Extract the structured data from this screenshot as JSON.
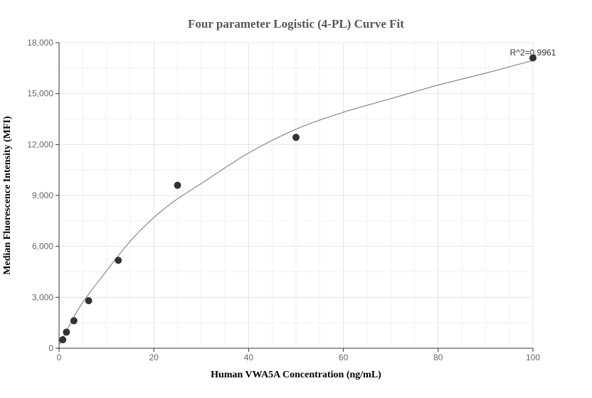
{
  "chart_data": {
    "type": "scatter",
    "title": "Four parameter Logistic (4-PL) Curve Fit",
    "xlabel": "Human VWA5A Concentration (ng/mL)",
    "ylabel": "Median Fluorescence Intensity (MFI)",
    "xlim": [
      0,
      100
    ],
    "ylim": [
      0,
      18000
    ],
    "x_ticks": [
      0,
      20,
      40,
      60,
      80,
      100
    ],
    "x_tick_labels": [
      "0",
      "20",
      "40",
      "60",
      "80",
      "100"
    ],
    "y_ticks": [
      0,
      3000,
      6000,
      9000,
      12000,
      15000,
      18000
    ],
    "y_tick_labels": [
      "0",
      "3,000",
      "6,000",
      "9,000",
      "12,000",
      "15,000",
      "18,000"
    ],
    "grid": true,
    "annotation": "R^2=0.9961",
    "series": [
      {
        "kind": "points",
        "x": [
          0.78,
          1.56,
          3.13,
          6.25,
          12.5,
          25,
          50,
          100
        ],
        "y": [
          500,
          950,
          1620,
          2800,
          5180,
          9600,
          12420,
          17100
        ],
        "color": "#333333"
      },
      {
        "kind": "fit-curve",
        "x": [
          0,
          2,
          5,
          10,
          15,
          20,
          25,
          30,
          40,
          50,
          60,
          70,
          80,
          90,
          100
        ],
        "y": [
          180,
          1250,
          2700,
          4550,
          6300,
          7700,
          8800,
          9700,
          11500,
          12900,
          13900,
          14700,
          15500,
          16200,
          16950
        ],
        "color": "#888888"
      }
    ]
  }
}
